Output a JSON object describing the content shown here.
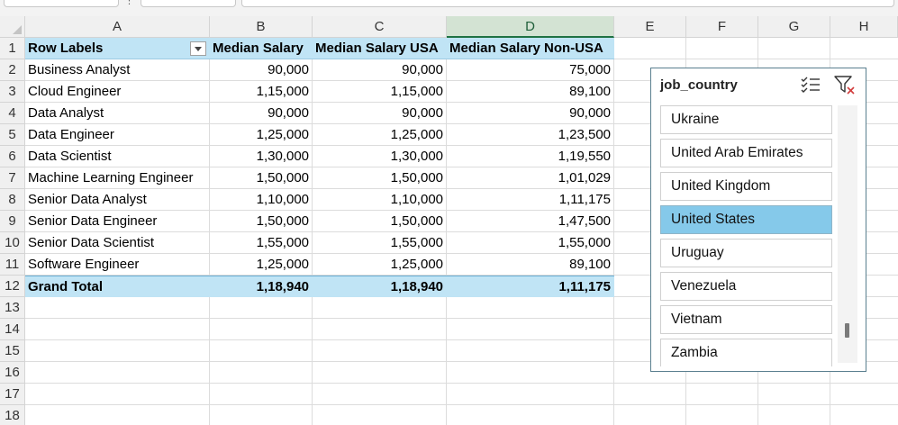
{
  "columns": [
    "A",
    "B",
    "C",
    "D",
    "E",
    "F",
    "G",
    "H"
  ],
  "rows": [
    "1",
    "2",
    "3",
    "4",
    "5",
    "6",
    "7",
    "8",
    "9",
    "10",
    "11",
    "12",
    "13",
    "14",
    "15",
    "16",
    "17",
    "18"
  ],
  "pivot": {
    "header": {
      "row_labels": "Row Labels",
      "median_salary": "Median Salary",
      "median_usa": "Median Salary USA",
      "median_non_usa": "Median Salary Non-USA"
    },
    "rows": [
      {
        "label": "Business Analyst",
        "b": "90,000",
        "c": "90,000",
        "d": "75,000"
      },
      {
        "label": "Cloud Engineer",
        "b": "1,15,000",
        "c": "1,15,000",
        "d": "89,100"
      },
      {
        "label": "Data Analyst",
        "b": "90,000",
        "c": "90,000",
        "d": "90,000"
      },
      {
        "label": "Data Engineer",
        "b": "1,25,000",
        "c": "1,25,000",
        "d": "1,23,500"
      },
      {
        "label": "Data Scientist",
        "b": "1,30,000",
        "c": "1,30,000",
        "d": "1,19,550"
      },
      {
        "label": "Machine Learning Engineer",
        "b": "1,50,000",
        "c": "1,50,000",
        "d": "1,01,029"
      },
      {
        "label": "Senior Data Analyst",
        "b": "1,10,000",
        "c": "1,10,000",
        "d": "1,11,175"
      },
      {
        "label": "Senior Data Engineer",
        "b": "1,50,000",
        "c": "1,50,000",
        "d": "1,47,500"
      },
      {
        "label": "Senior Data Scientist",
        "b": "1,55,000",
        "c": "1,55,000",
        "d": "1,55,000"
      },
      {
        "label": "Software Engineer",
        "b": "1,25,000",
        "c": "1,25,000",
        "d": "89,100"
      }
    ],
    "total": {
      "label": "Grand Total",
      "b": "1,18,940",
      "c": "1,18,940",
      "d": "1,11,175"
    }
  },
  "slicer": {
    "title": "job_country",
    "items": [
      {
        "label": "Ukraine",
        "selected": false
      },
      {
        "label": "United Arab Emirates",
        "selected": false
      },
      {
        "label": "United Kingdom",
        "selected": false
      },
      {
        "label": "United States",
        "selected": true
      },
      {
        "label": "Uruguay",
        "selected": false
      },
      {
        "label": "Venezuela",
        "selected": false
      },
      {
        "label": "Vietnam",
        "selected": false
      },
      {
        "label": "Zambia",
        "selected": false
      }
    ]
  },
  "colors": {
    "pivot_header": "#c0e4f5",
    "slicer_selected": "#85c9ea",
    "selected_column": "#1f7244"
  }
}
